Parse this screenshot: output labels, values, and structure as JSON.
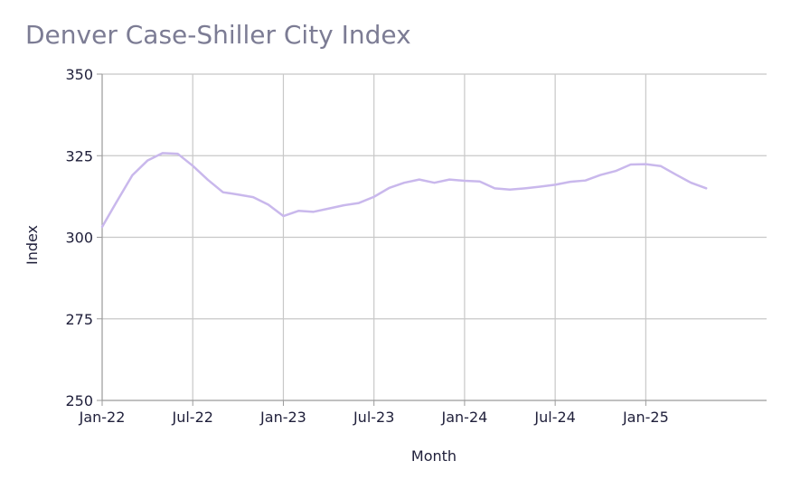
{
  "chart_data": {
    "type": "line",
    "title": "Denver Case-Shiller City Index",
    "xlabel": "Month",
    "ylabel": "Index",
    "ylim": [
      250,
      350
    ],
    "yticks": [
      250,
      275,
      300,
      325,
      350
    ],
    "xlim": [
      "2022-01",
      "2025-09"
    ],
    "xticks": [
      {
        "date": "2022-01",
        "label": "Jan-22"
      },
      {
        "date": "2022-07",
        "label": "Jul-22"
      },
      {
        "date": "2023-01",
        "label": "Jan-23"
      },
      {
        "date": "2023-07",
        "label": "Jul-23"
      },
      {
        "date": "2024-01",
        "label": "Jan-24"
      },
      {
        "date": "2024-07",
        "label": "Jul-24"
      },
      {
        "date": "2025-01",
        "label": "Jan-25"
      }
    ],
    "grid": true,
    "line_color": "#c9b8ec",
    "series": [
      {
        "x": [
          "2022-01",
          "2022-02",
          "2022-03",
          "2022-04",
          "2022-05",
          "2022-06",
          "2022-07",
          "2022-08",
          "2022-09",
          "2022-10",
          "2022-11",
          "2022-12",
          "2023-01",
          "2023-02",
          "2023-03",
          "2023-04",
          "2023-05",
          "2023-06",
          "2023-07",
          "2023-08",
          "2023-09",
          "2023-10",
          "2023-11",
          "2023-12",
          "2024-01",
          "2024-02",
          "2024-03",
          "2024-04",
          "2024-05",
          "2024-06",
          "2024-07",
          "2024-08",
          "2024-09",
          "2024-10",
          "2024-11",
          "2024-12",
          "2025-01",
          "2025-02",
          "2025-03",
          "2025-04",
          "2025-05"
        ],
        "values": [
          303.2,
          311.2,
          319.0,
          323.5,
          325.8,
          325.6,
          321.9,
          317.6,
          313.8,
          313.1,
          312.3,
          310.0,
          306.5,
          308.1,
          307.8,
          308.8,
          309.8,
          310.5,
          312.4,
          315.1,
          316.7,
          317.7,
          316.7,
          317.7,
          317.3,
          317.1,
          315.0,
          314.6,
          315.0,
          315.5,
          316.1,
          317.0,
          317.4,
          319.1,
          320.3,
          322.3,
          322.4,
          321.8,
          319.2,
          316.7,
          315.0
        ]
      }
    ]
  }
}
